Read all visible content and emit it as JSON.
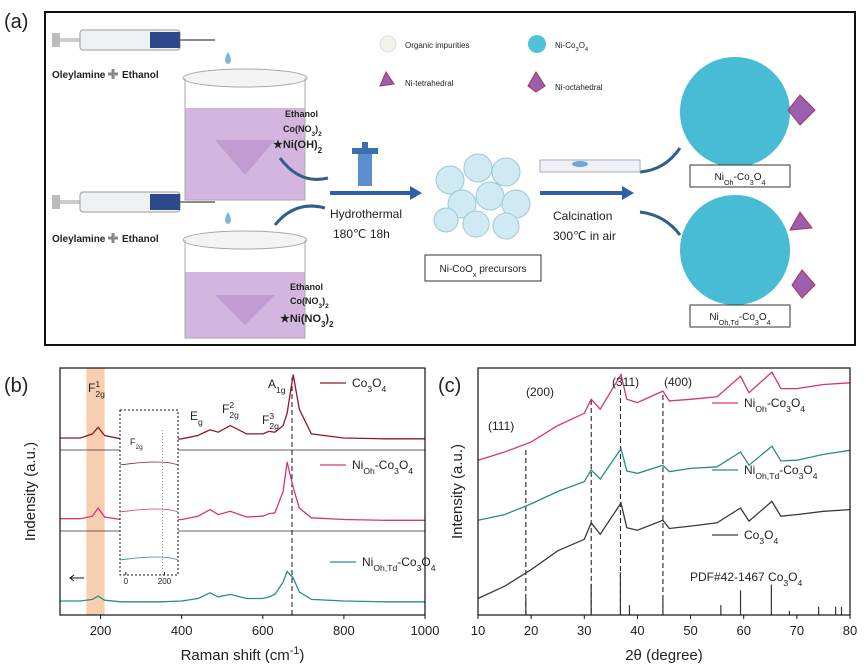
{
  "diagram": {
    "label": "(a)",
    "top_reagents": [
      "Oleylamine",
      "Ethanol"
    ],
    "bottom_reagents": [
      "Oleylamine",
      "Ethanol"
    ],
    "top_additives": [
      "Ethanol",
      [
        "Co(NO",
        {
          "sub": "3"
        },
        ")",
        {
          "sub": "2"
        }
      ],
      [
        "★Ni(OH)",
        {
          "sub": "2"
        }
      ]
    ],
    "bottom_additives": [
      "Ethanol",
      [
        "Co(NO",
        {
          "sub": "3"
        },
        ")",
        {
          "sub": "2"
        }
      ],
      [
        "★Ni(NO",
        {
          "sub": "3"
        },
        ")",
        {
          "sub": "2"
        }
      ]
    ],
    "step1": [
      "Hydrothermal",
      "180℃ 18h"
    ],
    "precursor": [
      "Ni-CoO",
      {
        "sub": "x"
      },
      " precursors"
    ],
    "step2": [
      "Calcination",
      "300℃ in air"
    ],
    "legend": [
      "Organic impurities",
      [
        "Ni-Co",
        {
          "sub": "3"
        },
        "O",
        {
          "sub": "4"
        }
      ],
      "Ni-tetrahedral",
      "Ni-octahedral"
    ],
    "products": [
      [
        "Ni",
        {
          "sub": "Oh"
        },
        "-Co",
        {
          "sub": "3"
        },
        "O",
        {
          "sub": "4"
        }
      ],
      [
        "Ni",
        {
          "sub": "Oh,Td"
        },
        "-Co",
        {
          "sub": "3"
        },
        "O",
        {
          "sub": "4"
        }
      ]
    ]
  },
  "chart_data": [
    {
      "type": "line",
      "panel_label": "(b)",
      "xlabel": [
        "Raman shift (cm",
        {
          "sup": "-1"
        },
        ")"
      ],
      "ylabel": "Indensity (a.u.)",
      "xlim": [
        100,
        1000
      ],
      "xticks": [
        200,
        400,
        600,
        800,
        1000
      ],
      "ylim": [
        0,
        3
      ],
      "x": [
        100,
        150,
        180,
        194,
        210,
        250,
        300,
        350,
        400,
        440,
        470,
        490,
        520,
        560,
        600,
        615,
        630,
        650,
        660,
        675,
        690,
        720,
        800,
        900,
        1000
      ],
      "series": [
        {
          "name": [
            "Co",
            {
              "sub": "3"
            },
            "O",
            {
              "sub": "4"
            }
          ],
          "color": "#8b1a2b",
          "values": [
            2.15,
            2.15,
            2.2,
            2.28,
            2.18,
            2.14,
            2.13,
            2.13,
            2.14,
            2.18,
            2.25,
            2.22,
            2.3,
            2.2,
            2.2,
            2.23,
            2.22,
            2.3,
            2.45,
            2.92,
            2.5,
            2.2,
            2.15,
            2.14,
            2.14
          ]
        },
        {
          "name": [
            "Ni",
            {
              "sub": "Oh"
            },
            "-Co",
            {
              "sub": "3"
            },
            "O",
            {
              "sub": "4"
            }
          ],
          "color": "#d6337a",
          "values": [
            1.17,
            1.17,
            1.2,
            1.3,
            1.19,
            1.16,
            1.15,
            1.15,
            1.16,
            1.2,
            1.28,
            1.22,
            1.26,
            1.19,
            1.2,
            1.23,
            1.24,
            1.5,
            1.86,
            1.55,
            1.3,
            1.18,
            1.16,
            1.15,
            1.15
          ]
        },
        {
          "name": [
            "Ni",
            {
              "sub": "Oh,Td"
            },
            "-Co",
            {
              "sub": "3"
            },
            "O",
            {
              "sub": "4"
            }
          ],
          "color": "#2a8c8c",
          "values": [
            0.17,
            0.17,
            0.19,
            0.23,
            0.18,
            0.16,
            0.16,
            0.16,
            0.17,
            0.2,
            0.27,
            0.22,
            0.25,
            0.2,
            0.2,
            0.22,
            0.25,
            0.4,
            0.53,
            0.45,
            0.28,
            0.19,
            0.17,
            0.16,
            0.16
          ]
        }
      ],
      "highlight_band": [
        165,
        210
      ],
      "reference_lines": [
        672
      ],
      "annotations": [
        [
          "F",
          {
            "sub": "2g",
            "sup": "1"
          }
        ],
        [
          "E",
          {
            "sub": "g"
          }
        ],
        [
          "F",
          {
            "sub": "2g",
            "sup": "2"
          }
        ],
        [
          "F",
          {
            "sub": "2g",
            "sup": "3"
          }
        ],
        [
          "A",
          {
            "sub": "1g"
          }
        ]
      ],
      "inset": {
        "label": [
          "F",
          {
            "sub": "2g"
          }
        ],
        "xlim": [
          -30,
          270
        ],
        "xticks": [
          0,
          200
        ]
      }
    },
    {
      "type": "line",
      "panel_label": "(c)",
      "xlabel": "2θ (degree)",
      "ylabel": "Intensity (a.u.)",
      "xlim": [
        10,
        80
      ],
      "xticks": [
        10,
        20,
        30,
        40,
        50,
        60,
        70,
        80
      ],
      "ylim": [
        0,
        3
      ],
      "x": [
        10,
        15,
        20,
        25,
        30,
        31.3,
        33,
        36.9,
        38,
        40,
        44.8,
        46,
        50,
        55,
        59.4,
        61,
        65.3,
        67,
        70,
        75,
        80
      ],
      "series": [
        {
          "name": [
            "Ni",
            {
              "sub": "Oh"
            },
            "-Co",
            {
              "sub": "3"
            },
            "O",
            {
              "sub": "4"
            }
          ],
          "color": "#d6337a",
          "values": [
            1.88,
            1.98,
            2.1,
            2.3,
            2.45,
            2.62,
            2.5,
            2.92,
            2.62,
            2.58,
            2.72,
            2.6,
            2.62,
            2.65,
            2.9,
            2.7,
            2.95,
            2.75,
            2.75,
            2.8,
            2.82
          ]
        },
        {
          "name": [
            "Ni",
            {
              "sub": "Oh,Td"
            },
            "-Co",
            {
              "sub": "3"
            },
            "O",
            {
              "sub": "4"
            }
          ],
          "color": "#2a8c80",
          "values": [
            1.15,
            1.22,
            1.35,
            1.5,
            1.62,
            1.76,
            1.65,
            2.02,
            1.75,
            1.72,
            1.82,
            1.74,
            1.78,
            1.8,
            1.98,
            1.82,
            2.05,
            1.87,
            1.88,
            1.95,
            2.0
          ]
        },
        {
          "name": [
            "Co",
            {
              "sub": "3"
            },
            "O",
            {
              "sub": "4"
            }
          ],
          "color": "#3a3a3a",
          "values": [
            0.2,
            0.35,
            0.55,
            0.78,
            0.92,
            1.12,
            0.98,
            1.36,
            1.06,
            1.03,
            1.15,
            1.05,
            1.08,
            1.12,
            1.3,
            1.14,
            1.38,
            1.2,
            1.22,
            1.26,
            1.28
          ]
        }
      ],
      "reference": {
        "name": [
          "PDF#42-1467 Co",
          {
            "sub": "3"
          },
          "O",
          {
            "sub": "4"
          }
        ],
        "color": "#333333",
        "x": [
          19.0,
          31.3,
          36.8,
          38.5,
          44.8,
          55.7,
          59.4,
          65.2,
          68.6,
          74.1,
          77.3,
          78.4
        ],
        "values": [
          0.2,
          0.38,
          0.52,
          0.12,
          0.24,
          0.12,
          0.3,
          0.37,
          0.05,
          0.1,
          0.1,
          0.1
        ]
      },
      "reference_lines": [
        19.0,
        31.3,
        36.8,
        44.8
      ],
      "annotations": [
        "(111)",
        "(200)",
        "(311)",
        "(400)"
      ]
    }
  ]
}
